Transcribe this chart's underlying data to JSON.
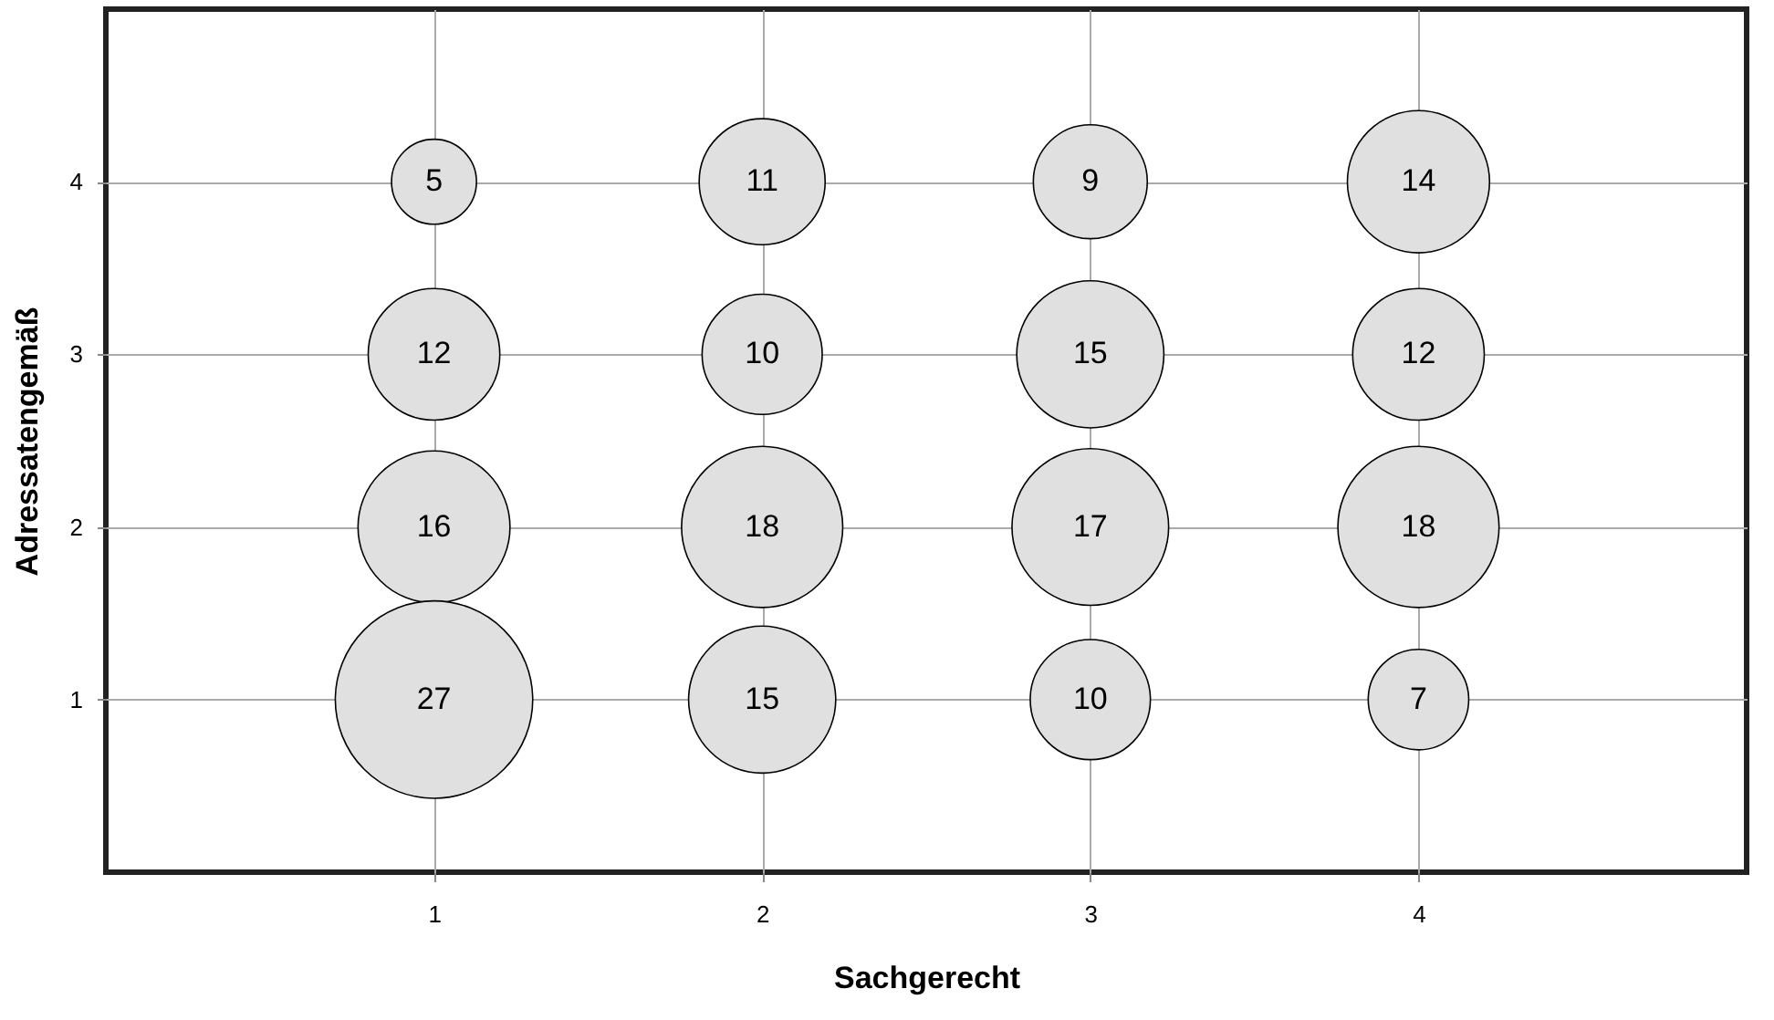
{
  "chart_data": {
    "type": "bubble",
    "xlabel": "Sachgerecht",
    "ylabel": "Adressatengemäß",
    "x": [
      1,
      1,
      1,
      1,
      2,
      2,
      2,
      2,
      3,
      3,
      3,
      3,
      4,
      4,
      4,
      4
    ],
    "series": [
      {
        "color": "#e0e0e0",
        "values": [
          4,
          3,
          2,
          1,
          4,
          3,
          2,
          1,
          4,
          3,
          2,
          1,
          4,
          3,
          2,
          1
        ],
        "sizes": [
          5,
          12,
          16,
          27,
          11,
          10,
          18,
          15,
          9,
          15,
          17,
          10,
          14,
          12,
          18,
          7
        ],
        "value_labels": [
          "5",
          "12",
          "16",
          "27",
          "11",
          "10",
          "18",
          "15",
          "9",
          "15",
          "17",
          "10",
          "14",
          "12",
          "18",
          "7"
        ]
      }
    ],
    "xlim": [
      0,
      5
    ],
    "ylim": [
      0,
      5
    ],
    "xticks": [
      1,
      2,
      3,
      4
    ],
    "yticks": [
      1,
      2,
      3,
      4
    ],
    "grid": true,
    "legend": false
  }
}
